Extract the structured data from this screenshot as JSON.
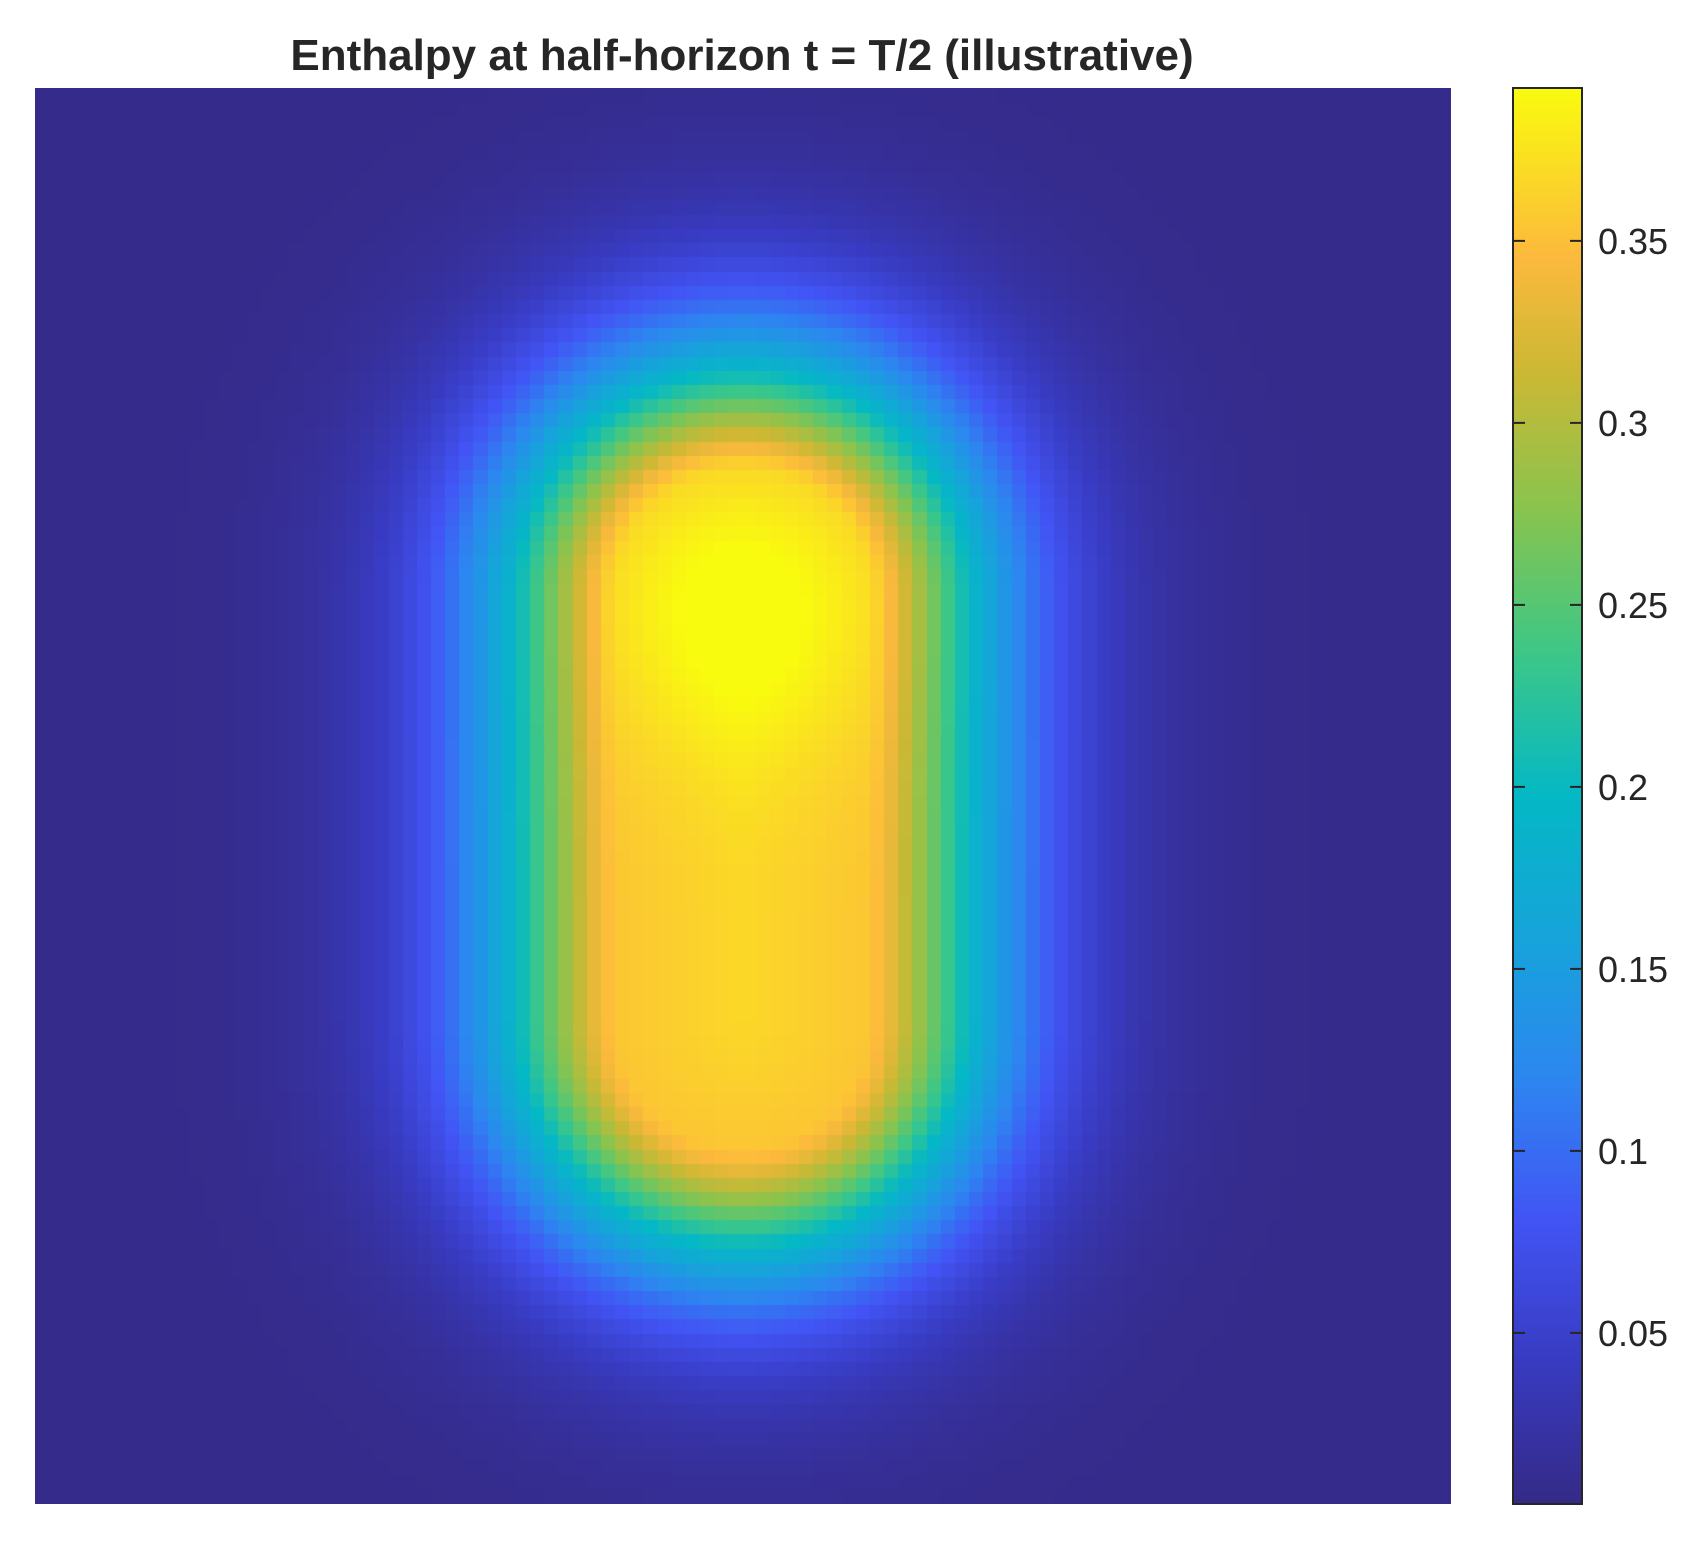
{
  "chart_data": {
    "type": "heatmap",
    "title": "Enthalpy at half-horizon t = T/2 (illustrative)",
    "colormap": "parula",
    "color_range": [
      0.003,
      0.392
    ],
    "field": {
      "description_of_shape": "capsule",
      "background_value": 0.005,
      "peak_value": 0.392,
      "peak_location": [
        0.5,
        0.37
      ],
      "capsule_axis_y": [
        0.36,
        0.66
      ],
      "half_width": 0.088,
      "decay_scale": 0.1
    },
    "colorbar": {
      "ticks": [
        {
          "value": 0.05,
          "label": "0.05"
        },
        {
          "value": 0.1,
          "label": "0.1"
        },
        {
          "value": 0.15,
          "label": "0.15"
        },
        {
          "value": 0.2,
          "label": "0.2"
        },
        {
          "value": 0.25,
          "label": "0.25"
        },
        {
          "value": 0.3,
          "label": "0.3"
        },
        {
          "value": 0.35,
          "label": "0.35"
        }
      ]
    },
    "axes": {
      "visible": false,
      "grid": false
    }
  }
}
